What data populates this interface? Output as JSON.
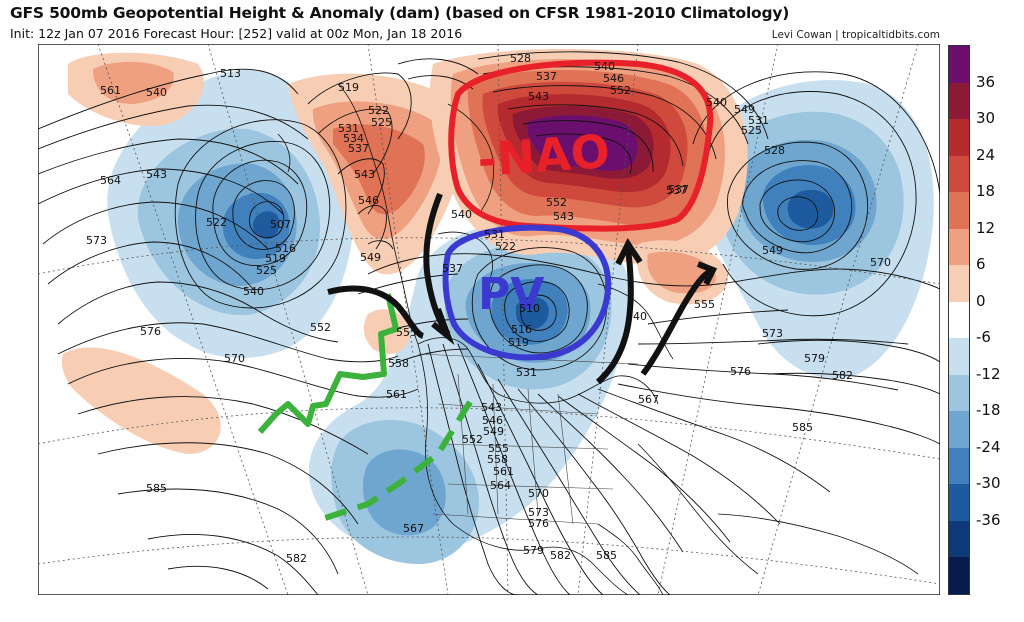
{
  "title": "GFS 500mb Geopotential Height & Anomaly (dam) (based on CFSR 1981-2010 Climatology)",
  "subtitle": "Init: 12z Jan 07 2016   Forecast Hour: [252]   valid at 00z Mon, Jan 18 2016",
  "credit": "Levi Cowan | tropicaltidbits.com",
  "annotations": {
    "nao": "-NAO",
    "pv": "PV"
  },
  "colorbar": {
    "labels": [
      "36",
      "30",
      "24",
      "18",
      "12",
      "6",
      "0",
      "-6",
      "-12",
      "-18",
      "-24",
      "-30",
      "-36"
    ],
    "colors": [
      "#6a0f6e",
      "#8c1a36",
      "#b42a2f",
      "#cf4a3d",
      "#e07356",
      "#eea080",
      "#f7cdb4",
      "#ffffff",
      "#c7dfee",
      "#9cc5e0",
      "#6fa6d0",
      "#3f80bd",
      "#1d5b9e",
      "#0e3a78",
      "#061c4e"
    ]
  },
  "contours": {
    "height_labels": [
      "513",
      "561",
      "540",
      "519",
      "522",
      "525",
      "531",
      "534",
      "537",
      "543",
      "546",
      "549",
      "552",
      "555",
      "558",
      "564",
      "570",
      "573",
      "576",
      "579",
      "582",
      "585",
      "567",
      "528",
      "507",
      "516",
      "510"
    ]
  },
  "map_labels": [
    "513",
    "561",
    "540",
    "519",
    "522",
    "525",
    "531",
    "534",
    "537",
    "543",
    "546",
    "564",
    "543",
    "522",
    "507",
    "516",
    "519",
    "525",
    "540",
    "573",
    "576",
    "570",
    "552",
    "549",
    "555",
    "558",
    "561",
    "543",
    "546",
    "549",
    "552",
    "555",
    "558",
    "561",
    "564",
    "567",
    "570",
    "573",
    "576",
    "579",
    "582",
    "585",
    "585",
    "582",
    "528",
    "537",
    "540",
    "546",
    "543",
    "552",
    "552",
    "543",
    "540",
    "531",
    "522",
    "537",
    "510",
    "516",
    "519",
    "531",
    "540",
    "537",
    "549",
    "555",
    "573",
    "576",
    "567",
    "579",
    "582",
    "585",
    "570",
    "549",
    "540",
    "531",
    "525",
    "528",
    "537"
  ]
}
